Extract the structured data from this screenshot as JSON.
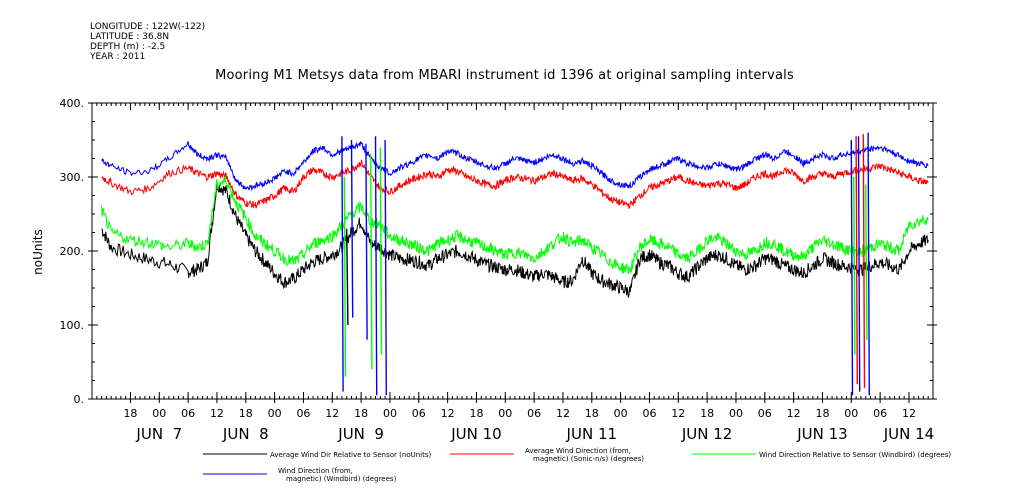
{
  "metadata": {
    "longitude": "LONGITUDE : 122W(-122)",
    "latitude": "LATITUDE : 36.8N",
    "depth": "DEPTH (m) : -2.5",
    "year": "YEAR : 2011"
  },
  "chart_data": {
    "type": "line",
    "title": "Mooring M1 Metsys data from MBARI instrument id 1396 at original sampling intervals",
    "ylabel": "noUnits",
    "xlabel": "",
    "ylim": [
      0,
      400
    ],
    "xlim_hours": [
      -8,
      167
    ],
    "y_ticks": [
      0,
      100,
      200,
      300,
      400
    ],
    "y_tick_labels": [
      "0.",
      "100.",
      "200.",
      "300.",
      "400."
    ],
    "x_hour_ticks": [
      {
        "h": 0,
        "label": "18"
      },
      {
        "h": 6,
        "label": "00"
      },
      {
        "h": 12,
        "label": "06"
      },
      {
        "h": 18,
        "label": "12"
      },
      {
        "h": 24,
        "label": "18"
      },
      {
        "h": 30,
        "label": "00"
      },
      {
        "h": 36,
        "label": "06"
      },
      {
        "h": 42,
        "label": "12"
      },
      {
        "h": 48,
        "label": "18"
      },
      {
        "h": 54,
        "label": "00"
      },
      {
        "h": 60,
        "label": "06"
      },
      {
        "h": 66,
        "label": "12"
      },
      {
        "h": 72,
        "label": "18"
      },
      {
        "h": 78,
        "label": "00"
      },
      {
        "h": 84,
        "label": "06"
      },
      {
        "h": 90,
        "label": "12"
      },
      {
        "h": 96,
        "label": "18"
      },
      {
        "h": 102,
        "label": "00"
      },
      {
        "h": 108,
        "label": "06"
      },
      {
        "h": 114,
        "label": "12"
      },
      {
        "h": 120,
        "label": "18"
      },
      {
        "h": 126,
        "label": "00"
      },
      {
        "h": 132,
        "label": "06"
      },
      {
        "h": 138,
        "label": "12"
      },
      {
        "h": 144,
        "label": "18"
      },
      {
        "h": 150,
        "label": "00"
      },
      {
        "h": 156,
        "label": "06"
      },
      {
        "h": 162,
        "label": "12"
      }
    ],
    "x_day_labels": [
      {
        "h": 6,
        "label": "JUN  7"
      },
      {
        "h": 24,
        "label": "JUN  8"
      },
      {
        "h": 48,
        "label": "JUN  9"
      },
      {
        "h": 72,
        "label": "JUN 10"
      },
      {
        "h": 96,
        "label": "JUN 11"
      },
      {
        "h": 120,
        "label": "JUN 12"
      },
      {
        "h": 144,
        "label": "JUN 13"
      },
      {
        "h": 162,
        "label": "JUN 14"
      }
    ],
    "grid": false,
    "legend_position": "bottom",
    "series": [
      {
        "name": "Average Wind Dir Relative to Sensor (noUnits)",
        "color": "#000000",
        "x": [
          -6,
          -4,
          0,
          4,
          8,
          12,
          14,
          16,
          18,
          20,
          22,
          24,
          26,
          28,
          30,
          32,
          34,
          36,
          38,
          40,
          42,
          44,
          46,
          48,
          50,
          52,
          54,
          56,
          58,
          60,
          62,
          64,
          66,
          68,
          70,
          72,
          74,
          76,
          78,
          80,
          82,
          84,
          86,
          88,
          90,
          92,
          94,
          96,
          98,
          100,
          102,
          104,
          106,
          108,
          110,
          112,
          114,
          116,
          118,
          120,
          122,
          124,
          126,
          128,
          130,
          132,
          134,
          136,
          138,
          140,
          142,
          144,
          146,
          148,
          150,
          152,
          154,
          156,
          158,
          160,
          162,
          164,
          166
        ],
        "y": [
          230,
          205,
          195,
          188,
          182,
          172,
          175,
          185,
          290,
          280,
          245,
          220,
          200,
          185,
          170,
          158,
          162,
          175,
          185,
          190,
          195,
          205,
          225,
          240,
          210,
          205,
          195,
          190,
          188,
          185,
          180,
          190,
          195,
          200,
          195,
          188,
          182,
          178,
          175,
          175,
          170,
          165,
          170,
          165,
          158,
          160,
          190,
          170,
          160,
          155,
          150,
          145,
          190,
          195,
          185,
          180,
          170,
          165,
          178,
          190,
          195,
          190,
          180,
          175,
          180,
          190,
          188,
          180,
          175,
          170,
          180,
          190,
          185,
          180,
          178,
          175,
          180,
          185,
          180,
          175,
          200,
          210,
          215
        ]
      },
      {
        "name": "Average Wind Direction (from, magnetic) (Sonic-n/s) (degrees)",
        "color": "#ff0000",
        "x": [
          -6,
          -4,
          0,
          4,
          8,
          12,
          14,
          16,
          18,
          20,
          22,
          24,
          26,
          28,
          30,
          32,
          34,
          36,
          38,
          40,
          42,
          44,
          46,
          48,
          50,
          52,
          54,
          56,
          58,
          60,
          62,
          64,
          66,
          68,
          70,
          72,
          74,
          76,
          78,
          80,
          82,
          84,
          86,
          88,
          90,
          92,
          94,
          96,
          98,
          100,
          102,
          104,
          106,
          108,
          110,
          112,
          114,
          116,
          118,
          120,
          122,
          124,
          126,
          128,
          130,
          132,
          134,
          136,
          138,
          140,
          142,
          144,
          146,
          148,
          150,
          152,
          154,
          156,
          158,
          160,
          162,
          164,
          166
        ],
        "y": [
          300,
          292,
          280,
          285,
          305,
          312,
          305,
          300,
          305,
          300,
          275,
          265,
          262,
          268,
          275,
          285,
          280,
          300,
          310,
          305,
          300,
          305,
          310,
          320,
          300,
          285,
          280,
          288,
          295,
          300,
          305,
          300,
          310,
          308,
          300,
          295,
          290,
          288,
          295,
          300,
          298,
          295,
          300,
          305,
          300,
          295,
          298,
          290,
          280,
          270,
          265,
          262,
          275,
          285,
          290,
          295,
          300,
          295,
          290,
          288,
          292,
          290,
          285,
          290,
          300,
          305,
          300,
          310,
          305,
          295,
          300,
          305,
          300,
          305,
          308,
          310,
          312,
          315,
          310,
          305,
          300,
          295,
          292
        ]
      },
      {
        "name": "Wind Direction Relative to Sensor (Windbird) (degrees)",
        "color": "#00ff00",
        "x": [
          -6,
          -4,
          0,
          4,
          8,
          12,
          14,
          16,
          18,
          20,
          22,
          24,
          26,
          28,
          30,
          32,
          34,
          36,
          38,
          40,
          42,
          44,
          46,
          48,
          50,
          52,
          54,
          56,
          58,
          60,
          62,
          64,
          66,
          68,
          70,
          72,
          74,
          76,
          78,
          80,
          82,
          84,
          86,
          88,
          90,
          92,
          94,
          96,
          98,
          100,
          102,
          104,
          106,
          108,
          110,
          112,
          114,
          116,
          118,
          120,
          122,
          124,
          126,
          128,
          130,
          132,
          134,
          136,
          138,
          140,
          142,
          144,
          146,
          148,
          150,
          152,
          154,
          156,
          158,
          160,
          162,
          164,
          166
        ],
        "y": [
          255,
          225,
          215,
          212,
          205,
          210,
          205,
          210,
          290,
          295,
          265,
          245,
          220,
          210,
          200,
          190,
          185,
          195,
          210,
          215,
          220,
          235,
          250,
          260,
          240,
          235,
          220,
          215,
          210,
          205,
          200,
          210,
          215,
          220,
          215,
          210,
          205,
          200,
          195,
          198,
          195,
          190,
          200,
          210,
          220,
          210,
          215,
          205,
          195,
          185,
          178,
          175,
          205,
          215,
          210,
          205,
          195,
          190,
          200,
          215,
          218,
          210,
          200,
          195,
          200,
          212,
          210,
          200,
          195,
          192,
          205,
          215,
          210,
          205,
          200,
          198,
          205,
          210,
          205,
          200,
          235,
          240,
          245
        ]
      },
      {
        "name": "Wind Direction (from, magnetic) (Windbird) (degrees)",
        "color": "#0000ff",
        "x": [
          -6,
          -4,
          0,
          4,
          8,
          12,
          14,
          16,
          18,
          20,
          22,
          24,
          26,
          28,
          30,
          32,
          34,
          36,
          38,
          40,
          42,
          44,
          46,
          48,
          50,
          52,
          54,
          56,
          58,
          60,
          62,
          64,
          66,
          68,
          70,
          72,
          74,
          76,
          78,
          80,
          82,
          84,
          86,
          88,
          90,
          92,
          94,
          96,
          98,
          100,
          102,
          104,
          106,
          108,
          110,
          112,
          114,
          116,
          118,
          120,
          122,
          124,
          126,
          128,
          130,
          132,
          134,
          136,
          138,
          140,
          142,
          144,
          146,
          148,
          150,
          152,
          154,
          156,
          158,
          160,
          162,
          164,
          166
        ],
        "y": [
          322,
          315,
          305,
          308,
          325,
          345,
          330,
          325,
          330,
          325,
          295,
          285,
          288,
          292,
          298,
          308,
          305,
          320,
          335,
          340,
          330,
          335,
          340,
          345,
          325,
          312,
          305,
          312,
          318,
          325,
          330,
          325,
          335,
          332,
          325,
          320,
          315,
          312,
          318,
          325,
          322,
          320,
          325,
          330,
          325,
          318,
          322,
          315,
          305,
          295,
          290,
          288,
          300,
          310,
          315,
          320,
          325,
          318,
          315,
          312,
          318,
          315,
          310,
          315,
          325,
          330,
          325,
          335,
          330,
          318,
          325,
          330,
          325,
          330,
          332,
          335,
          338,
          340,
          335,
          328,
          322,
          318,
          315
        ]
      }
    ],
    "spikes": [
      {
        "series": 3,
        "h": 44,
        "values": [
          355,
          10
        ]
      },
      {
        "series": 3,
        "h": 46,
        "values": [
          350,
          110
        ]
      },
      {
        "series": 3,
        "h": 49,
        "values": [
          345,
          80
        ]
      },
      {
        "series": 3,
        "h": 51,
        "values": [
          355,
          5
        ]
      },
      {
        "series": 3,
        "h": 53,
        "values": [
          350,
          5
        ]
      },
      {
        "series": 2,
        "h": 44.5,
        "values": [
          300,
          30
        ]
      },
      {
        "series": 2,
        "h": 50,
        "values": [
          330,
          40
        ]
      },
      {
        "series": 2,
        "h": 52,
        "values": [
          340,
          60
        ]
      },
      {
        "series": 0,
        "h": 45,
        "values": [
          230,
          100
        ]
      },
      {
        "series": 3,
        "h": 150,
        "values": [
          350,
          5
        ]
      },
      {
        "series": 3,
        "h": 151.5,
        "values": [
          355,
          10
        ]
      },
      {
        "series": 3,
        "h": 153.5,
        "values": [
          360,
          5
        ]
      },
      {
        "series": 1,
        "h": 151,
        "values": [
          355,
          20
        ]
      },
      {
        "series": 1,
        "h": 152.5,
        "values": [
          358,
          15
        ]
      },
      {
        "series": 2,
        "h": 150.5,
        "values": [
          300,
          60
        ]
      },
      {
        "series": 2,
        "h": 153,
        "values": [
          290,
          80
        ]
      }
    ]
  },
  "legend": [
    {
      "label": "Average Wind Dir Relative to Sensor (noUnits)",
      "color": "#000000"
    },
    {
      "label1": "Average Wind Direction (from,",
      "label2": "magnetic) (Sonic-n/s) (degrees)",
      "color": "#ff0000"
    },
    {
      "label": "Wind Direction Relative to Sensor (Windbird) (degrees)",
      "color": "#00ff00"
    },
    {
      "label1": "Wind Direction (from,",
      "label2": "magnetic) (Windbird) (degrees)",
      "color": "#0000ff"
    }
  ]
}
